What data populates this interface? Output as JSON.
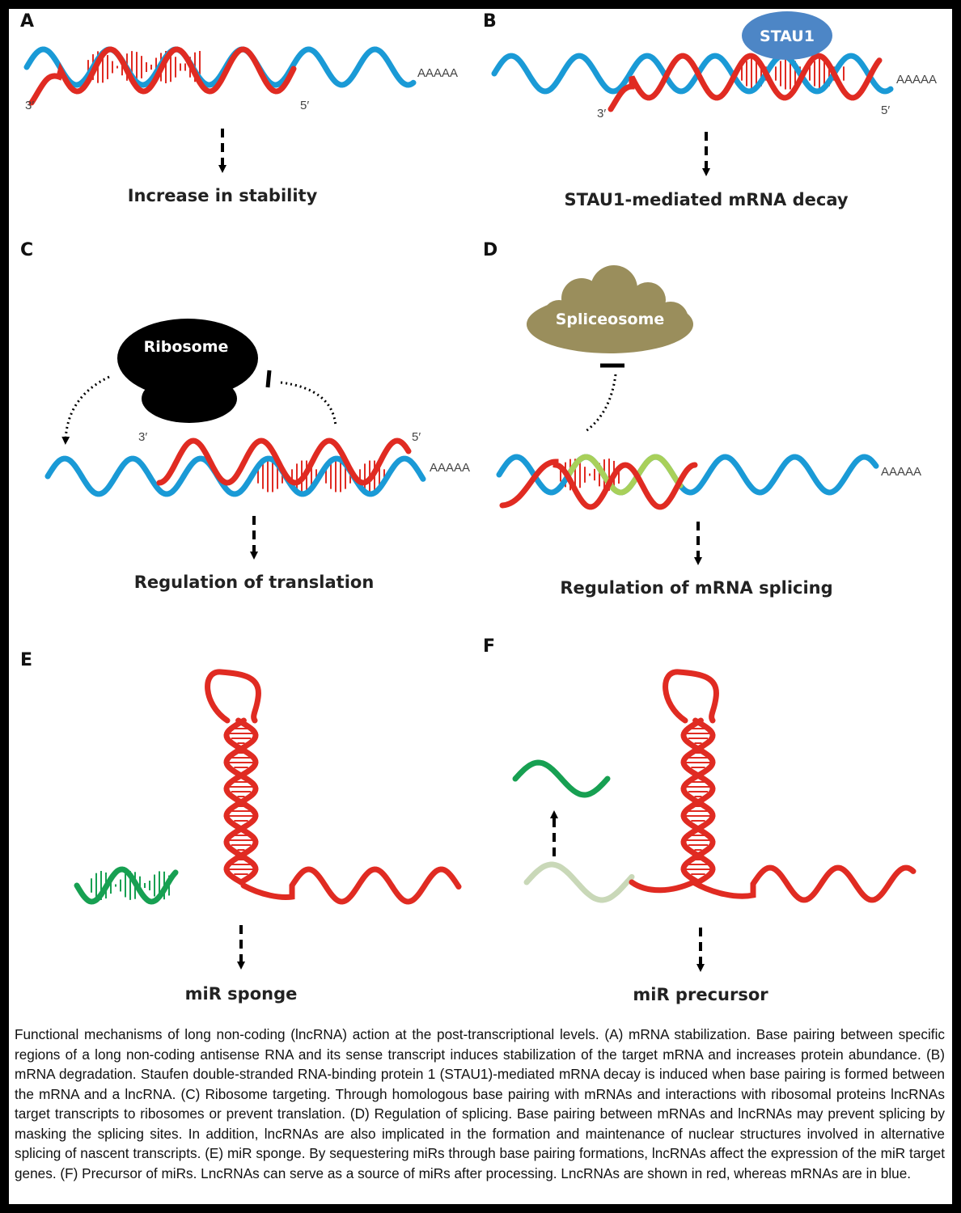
{
  "colors": {
    "lncrna": "#e02b22",
    "mrna": "#1a9ad6",
    "mir": "#17a052",
    "mir_faded": "#c9d8b8",
    "masked_mrna": "#a8d05a",
    "stau1": "#4d86c6",
    "spliceosome": "#9a8e5c",
    "ribosome": "#000000"
  },
  "panels": {
    "A": {
      "letter": "A",
      "outcome": "Increase in stability",
      "end3": "3′",
      "end5": "5′",
      "polyA": "AAAAA"
    },
    "B": {
      "letter": "B",
      "outcome": "STAU1-mediated mRNA decay",
      "end3": "3′",
      "end5": "5′",
      "polyA": "AAAAA",
      "protein": "STAU1"
    },
    "C": {
      "letter": "C",
      "outcome": "Regulation of translation",
      "end3": "3′",
      "end5": "5′",
      "polyA": "AAAAA",
      "complex": "Ribosome"
    },
    "D": {
      "letter": "D",
      "outcome": "Regulation of mRNA splicing",
      "polyA": "AAAAA",
      "complex": "Spliceosome"
    },
    "E": {
      "letter": "E",
      "outcome": "miR sponge"
    },
    "F": {
      "letter": "F",
      "outcome": "miR precursor"
    }
  },
  "caption": "Functional mechanisms of long non-coding (lncRNA) action at the post-transcriptional levels. (A) mRNA stabilization. Base pairing between specific regions of a long non-coding antisense RNA and its sense transcript induces stabilization of the target mRNA and increases protein abundance. (B) mRNA degradation. Staufen double-stranded RNA-binding protein 1 (STAU1)-mediated mRNA decay is induced when base pairing is formed between the mRNA and a lncRNA. (C) Ribosome targeting. Through homologous base pairing with mRNAs and interactions with ribosomal proteins lncRNAs target transcripts to ribosomes or prevent translation. (D) Regulation of splicing. Base pairing between mRNAs and lncRNAs may prevent splicing by masking the splicing sites. In addition, lncRNAs are also implicated in the formation and maintenance of nuclear structures involved in alternative splicing of nascent transcripts. (E) miR sponge. By sequestering miRs through base pairing formations, lncRNAs affect the expression of the miR target genes. (F) Precursor of miRs. LncRNAs can serve as a source of miRs after processing. LncRNAs are shown in red, whereas mRNAs are in blue."
}
